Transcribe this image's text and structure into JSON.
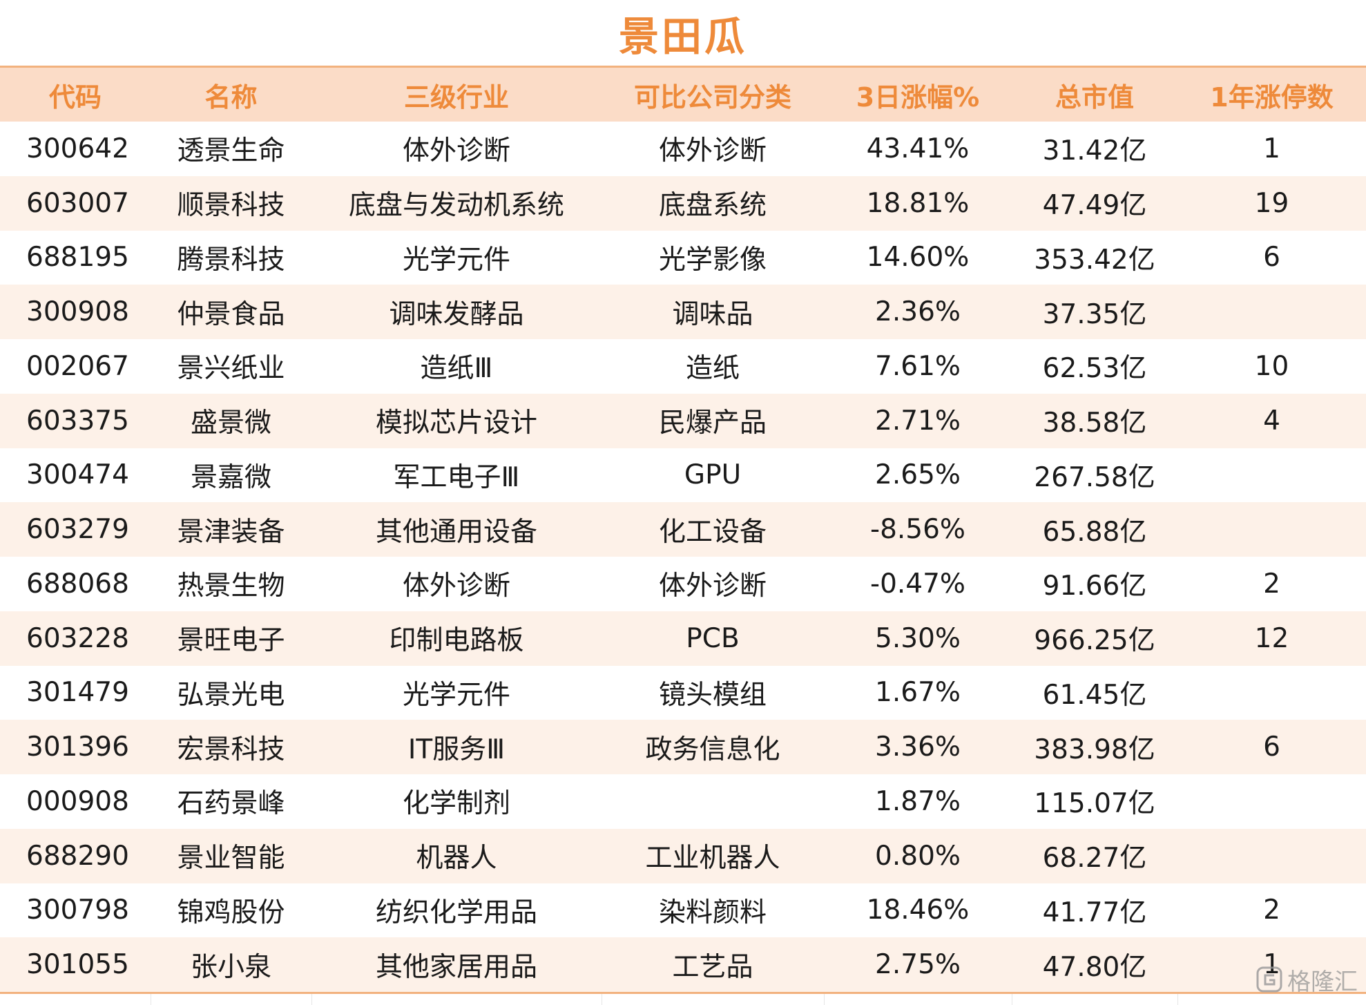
{
  "title": "景田瓜",
  "columns": [
    "代码",
    "名称",
    "三级行业",
    "可比公司分类",
    "3日涨幅%",
    "总市值",
    "1年涨停数"
  ],
  "rows": [
    {
      "code": "300642",
      "name": "透景生命",
      "industry": "体外诊断",
      "peer": "体外诊断",
      "gain": "43.41%",
      "cap": "31.42亿",
      "limit": "1"
    },
    {
      "code": "603007",
      "name": "顺景科技",
      "industry": "底盘与发动机系统",
      "peer": "底盘系统",
      "gain": "18.81%",
      "cap": "47.49亿",
      "limit": "19"
    },
    {
      "code": "688195",
      "name": "腾景科技",
      "industry": "光学元件",
      "peer": "光学影像",
      "gain": "14.60%",
      "cap": "353.42亿",
      "limit": "6"
    },
    {
      "code": "300908",
      "name": "仲景食品",
      "industry": "调味发酵品",
      "peer": "调味品",
      "gain": "2.36%",
      "cap": "37.35亿",
      "limit": ""
    },
    {
      "code": "002067",
      "name": "景兴纸业",
      "industry": "造纸Ⅲ",
      "peer": "造纸",
      "gain": "7.61%",
      "cap": "62.53亿",
      "limit": "10"
    },
    {
      "code": "603375",
      "name": "盛景微",
      "industry": "模拟芯片设计",
      "peer": "民爆产品",
      "gain": "2.71%",
      "cap": "38.58亿",
      "limit": "4"
    },
    {
      "code": "300474",
      "name": "景嘉微",
      "industry": "军工电子Ⅲ",
      "peer": "GPU",
      "gain": "2.65%",
      "cap": "267.58亿",
      "limit": ""
    },
    {
      "code": "603279",
      "name": "景津装备",
      "industry": "其他通用设备",
      "peer": "化工设备",
      "gain": "-8.56%",
      "cap": "65.88亿",
      "limit": ""
    },
    {
      "code": "688068",
      "name": "热景生物",
      "industry": "体外诊断",
      "peer": "体外诊断",
      "gain": "-0.47%",
      "cap": "91.66亿",
      "limit": "2"
    },
    {
      "code": "603228",
      "name": "景旺电子",
      "industry": "印制电路板",
      "peer": "PCB",
      "gain": "5.30%",
      "cap": "966.25亿",
      "limit": "12"
    },
    {
      "code": "301479",
      "name": "弘景光电",
      "industry": "光学元件",
      "peer": "镜头模组",
      "gain": "1.67%",
      "cap": "61.45亿",
      "limit": ""
    },
    {
      "code": "301396",
      "name": "宏景科技",
      "industry": "IT服务Ⅲ",
      "peer": "政务信息化",
      "gain": "3.36%",
      "cap": "383.98亿",
      "limit": "6"
    },
    {
      "code": "000908",
      "name": "石药景峰",
      "industry": "化学制剂",
      "peer": "",
      "gain": "1.87%",
      "cap": "115.07亿",
      "limit": ""
    },
    {
      "code": "688290",
      "name": "景业智能",
      "industry": "机器人",
      "peer": "工业机器人",
      "gain": "0.80%",
      "cap": "68.27亿",
      "limit": ""
    },
    {
      "code": "300798",
      "name": "锦鸡股份",
      "industry": "纺织化学用品",
      "peer": "染料颜料",
      "gain": "18.46%",
      "cap": "41.77亿",
      "limit": "2"
    },
    {
      "code": "301055",
      "name": "张小泉",
      "industry": "其他家居用品",
      "peer": "工艺品",
      "gain": "2.75%",
      "cap": "47.80亿",
      "limit": "1"
    }
  ],
  "watermark": {
    "icon": "gelonghui-logo-icon",
    "text": "格隆汇"
  }
}
